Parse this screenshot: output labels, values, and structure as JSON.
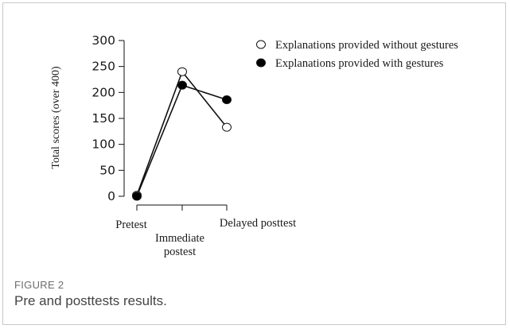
{
  "figure": {
    "label": "FIGURE 2",
    "caption": "Pre and posttests results."
  },
  "chart_data": {
    "type": "line",
    "categories": [
      [
        "Pretest"
      ],
      [
        "Immediate",
        "postest"
      ],
      [
        "Delayed posttest"
      ]
    ],
    "series": [
      {
        "name": "Explanations provided without gestures",
        "marker": "open-circle",
        "values": [
          2,
          240,
          133
        ]
      },
      {
        "name": "Explanations provided with gestures",
        "marker": "filled-circle",
        "values": [
          0,
          214,
          186
        ]
      }
    ],
    "ylabel": "Total scores (over 400)",
    "xlabel": "",
    "ylim": [
      0,
      300
    ],
    "yticks": [
      0,
      50,
      100,
      150,
      200,
      250,
      300
    ],
    "grid": false,
    "legend_position": "top-right",
    "colors": {
      "line": "#111111",
      "open_fill": "#ffffff",
      "filled_fill": "#000000"
    }
  }
}
